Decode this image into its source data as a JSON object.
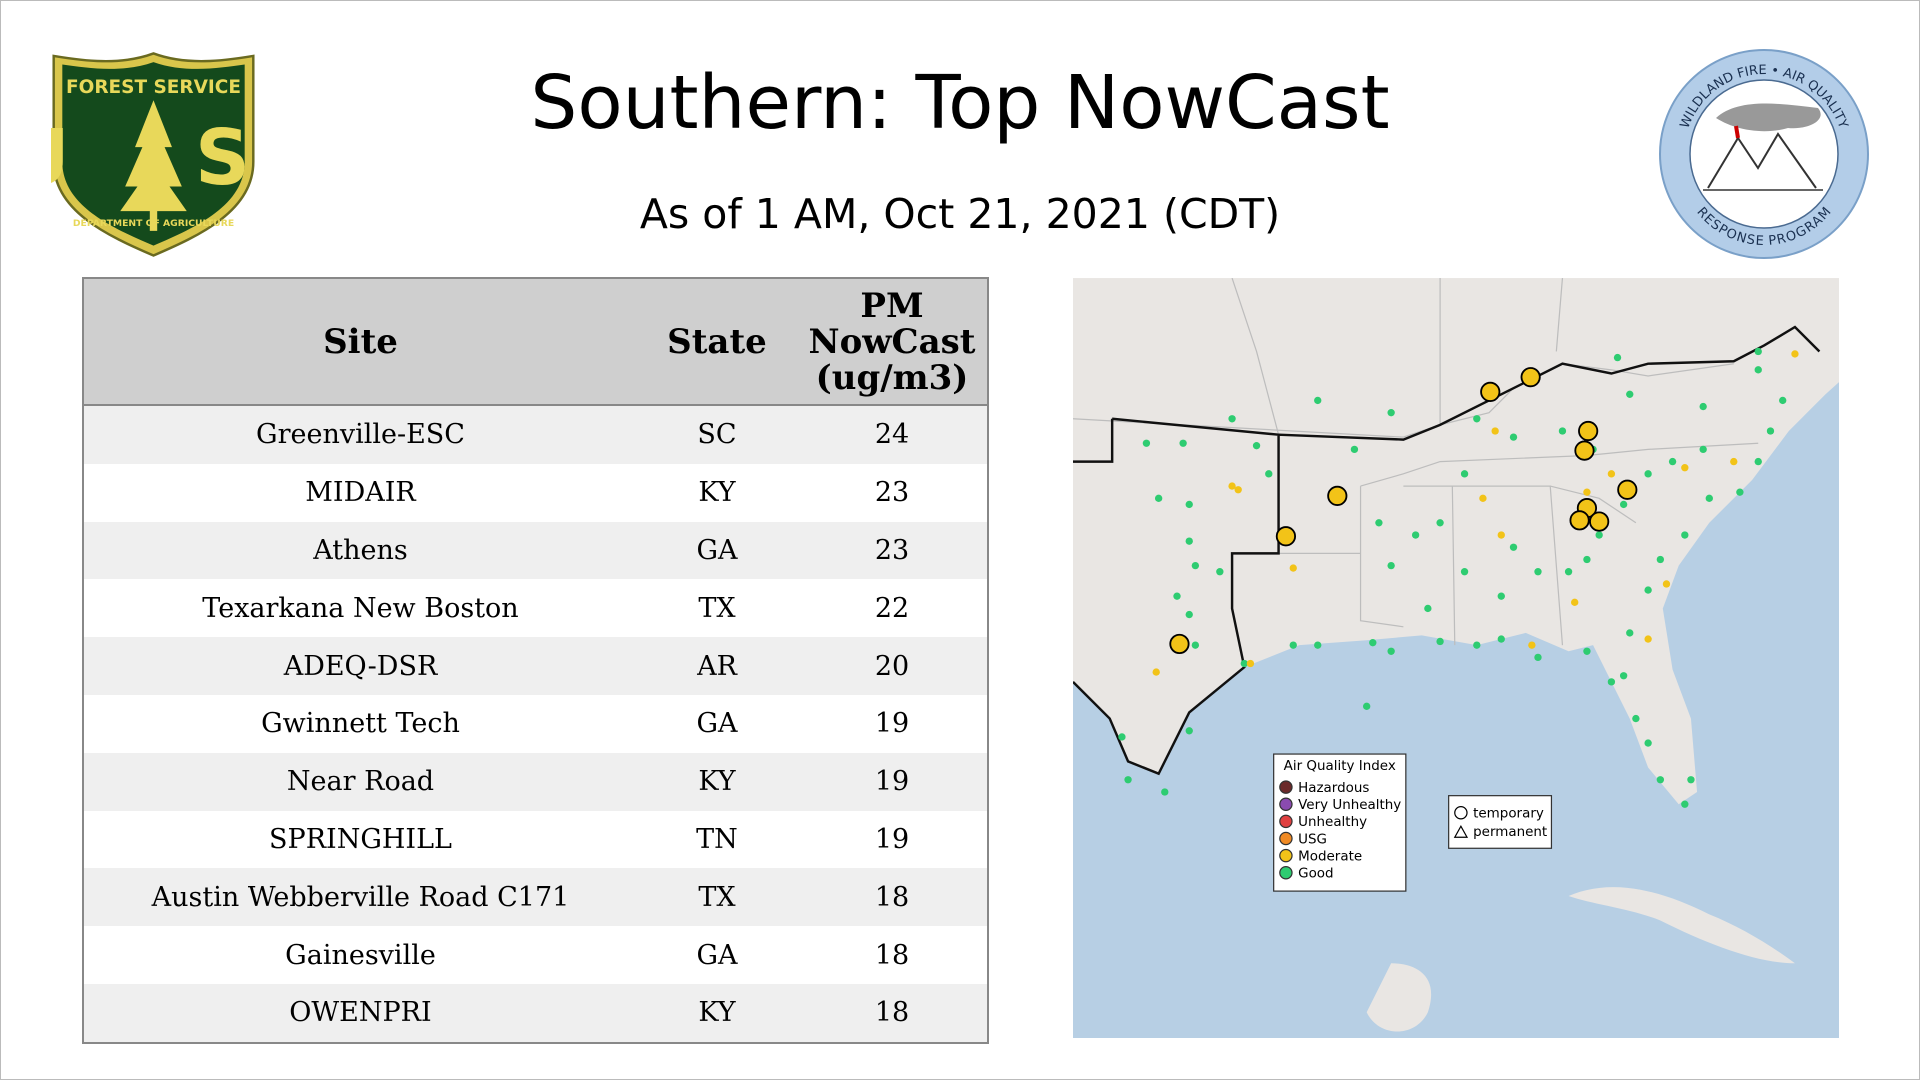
{
  "header": {
    "title": "Southern: Top NowCast",
    "subtitle": "As of  1 AM, Oct 21, 2021 (CDT)"
  },
  "logos": {
    "left": {
      "top": "FOREST SERVICE",
      "letters": "U S",
      "bottom": "DEPARTMENT OF AGRICULTURE"
    },
    "right": {
      "top": "WILDLAND FIRE • AIR QUALITY",
      "bottom": "RESPONSE PROGRAM"
    }
  },
  "table": {
    "columns": [
      "Site",
      "State",
      "PM NowCast (ug/m3)"
    ],
    "rows": [
      [
        "Greenville-ESC",
        "SC",
        24
      ],
      [
        "MIDAIR",
        "KY",
        23
      ],
      [
        "Athens",
        "GA",
        23
      ],
      [
        "Texarkana New Boston",
        "TX",
        22
      ],
      [
        "ADEQ-DSR",
        "AR",
        20
      ],
      [
        "Gwinnett Tech",
        "GA",
        19
      ],
      [
        "Near Road",
        "KY",
        19
      ],
      [
        "SPRINGHILL",
        "TN",
        19
      ],
      [
        "Austin Webberville Road C171",
        "TX",
        18
      ],
      [
        "Gainesville",
        "GA",
        18
      ],
      [
        "OWENPRI",
        "KY",
        18
      ]
    ]
  },
  "map": {
    "legend": {
      "title": "Air Quality Index",
      "items": [
        "Hazardous",
        "Very Unhealthy",
        "Unhealthy",
        "USG",
        "Moderate",
        "Good"
      ]
    },
    "site_types": [
      "temporary",
      "permanent"
    ]
  }
}
